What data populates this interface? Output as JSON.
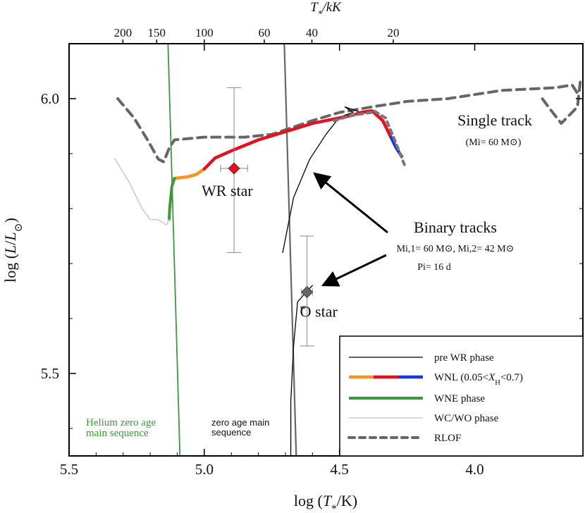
{
  "chart_data": {
    "type": "line",
    "xlabel": "log (T*/K)",
    "ylabel": "log (L/L⊙)",
    "top_xlabel": "T*/kK",
    "xlim": [
      5.5,
      3.6
    ],
    "ylim": [
      5.35,
      6.1
    ],
    "x_ticks": [
      5.5,
      5.0,
      4.5,
      4.0
    ],
    "x_tick_labels": [
      "5.5",
      "5.0",
      "4.5",
      "4.0"
    ],
    "y_ticks": [
      5.5,
      6.0
    ],
    "y_tick_labels": [
      "5.5",
      "6.0"
    ],
    "top_ticks_kK": [
      200,
      150,
      100,
      60,
      40,
      20
    ],
    "top_tick_labels": [
      "200",
      "150",
      "100",
      "60",
      "40",
      "20"
    ],
    "reference_lines": {
      "helium_zams": {
        "label_line1": "Helium zero age",
        "label_line2": "main sequence",
        "color": "#3a9a3a",
        "points": [
          [
            5.14,
            6.2
          ],
          [
            5.09,
            5.35
          ]
        ]
      },
      "zams": {
        "label_line1": "zero age main",
        "label_line2": "sequence",
        "color": "#666666",
        "points": [
          [
            4.71,
            6.2
          ],
          [
            4.66,
            5.35
          ]
        ]
      }
    },
    "series": [
      {
        "key": "single_dashed",
        "style": "rlof",
        "color": "#666666",
        "points": [
          [
            5.32,
            6.0
          ],
          [
            5.26,
            5.965
          ],
          [
            5.21,
            5.925
          ],
          [
            5.17,
            5.89
          ],
          [
            5.15,
            5.885
          ],
          [
            5.13,
            5.91
          ],
          [
            5.11,
            5.925
          ],
          [
            5.0,
            5.93
          ],
          [
            4.85,
            5.93
          ],
          [
            4.75,
            5.935
          ],
          [
            4.6,
            5.96
          ],
          [
            4.5,
            5.975
          ],
          [
            4.38,
            5.985
          ],
          [
            4.25,
            5.995
          ],
          [
            4.1,
            6.0
          ],
          [
            3.9,
            6.015
          ],
          [
            3.7,
            6.02
          ],
          [
            3.64,
            6.025
          ],
          [
            3.62,
            6.01
          ]
        ]
      },
      {
        "key": "single_dashed_tail",
        "style": "rlof",
        "color": "#666666",
        "points": [
          [
            3.61,
            6.03
          ],
          [
            3.62,
            5.985
          ],
          [
            3.68,
            5.955
          ],
          [
            3.72,
            5.98
          ],
          [
            3.75,
            6.0
          ]
        ]
      },
      {
        "key": "binary_pre_wr",
        "style": "pre_wr",
        "color": "#000000",
        "points": [
          [
            4.68,
            5.35
          ],
          [
            4.68,
            5.45
          ],
          [
            4.67,
            5.55
          ],
          [
            4.655,
            5.63
          ],
          [
            4.62,
            5.65
          ],
          [
            4.6,
            5.66
          ]
        ]
      },
      {
        "key": "binary_pre_wr_2",
        "style": "pre_wr",
        "color": "#000000",
        "points": [
          [
            4.71,
            5.72
          ],
          [
            4.67,
            5.82
          ],
          [
            4.61,
            5.89
          ],
          [
            4.55,
            5.935
          ],
          [
            4.51,
            5.96
          ],
          [
            4.48,
            5.97
          ],
          [
            4.45,
            5.975
          ],
          [
            4.48,
            5.985
          ],
          [
            4.42,
            5.975
          ]
        ]
      },
      {
        "key": "binary_wnl_orange",
        "style": "wnl",
        "color": "#f7941d",
        "points": [
          [
            5.11,
            5.855
          ],
          [
            5.06,
            5.858
          ],
          [
            5.03,
            5.862
          ],
          [
            5.0,
            5.872
          ]
        ]
      },
      {
        "key": "binary_wnl_red",
        "style": "wnl",
        "color": "#e8101e",
        "points": [
          [
            5.0,
            5.872
          ],
          [
            4.96,
            5.892
          ],
          [
            4.9,
            5.905
          ],
          [
            4.8,
            5.925
          ],
          [
            4.7,
            5.94
          ],
          [
            4.6,
            5.955
          ],
          [
            4.5,
            5.965
          ],
          [
            4.45,
            5.97
          ],
          [
            4.42,
            5.975
          ],
          [
            4.38,
            5.978
          ],
          [
            4.34,
            5.96
          ],
          [
            4.31,
            5.93
          ]
        ]
      },
      {
        "key": "binary_wnl_blue",
        "style": "wnl",
        "color": "#1a36e8",
        "points": [
          [
            4.31,
            5.93
          ],
          [
            4.29,
            5.91
          ],
          [
            4.27,
            5.895
          ]
        ]
      },
      {
        "key": "binary_wne",
        "style": "wne",
        "color": "#3a9a3a",
        "points": [
          [
            5.13,
            5.78
          ],
          [
            5.128,
            5.8
          ],
          [
            5.12,
            5.84
          ],
          [
            5.11,
            5.855
          ]
        ]
      },
      {
        "key": "binary_wc_wo",
        "style": "wcwo",
        "color": "#cccccc",
        "points": [
          [
            5.33,
            5.89
          ],
          [
            5.28,
            5.85
          ],
          [
            5.23,
            5.8
          ],
          [
            5.2,
            5.78
          ],
          [
            5.17,
            5.78
          ],
          [
            5.14,
            5.77
          ],
          [
            5.13,
            5.78
          ]
        ]
      },
      {
        "key": "binary_rlof_1",
        "style": "rlof",
        "color": "#777777",
        "points": [
          [
            4.52,
            5.96
          ],
          [
            4.45,
            5.97
          ],
          [
            4.38,
            5.975
          ]
        ]
      },
      {
        "key": "binary_rlof_2",
        "style": "rlof",
        "color": "#777777",
        "points": [
          [
            4.37,
            5.977
          ],
          [
            4.33,
            5.965
          ],
          [
            4.3,
            5.93
          ],
          [
            4.28,
            5.905
          ],
          [
            4.26,
            5.88
          ]
        ]
      },
      {
        "key": "binary_rlof_3",
        "style": "rlof",
        "color": "#777777",
        "points": [
          [
            4.64,
            5.62
          ],
          [
            4.63,
            5.62
          ]
        ]
      }
    ],
    "stars": [
      {
        "name": "WR star",
        "x": 4.89,
        "y": 5.873,
        "color": "#e8101e",
        "x_err": 0.05,
        "y_err": [
          5.72,
          6.02
        ]
      },
      {
        "name": "O star",
        "x": 4.62,
        "y": 5.648,
        "color": "#666666",
        "x_err": 0.02,
        "y_err": [
          5.55,
          5.75
        ]
      }
    ],
    "annotations": {
      "single_title": "Single track",
      "single_sub": "(Mi= 60 M⊙)",
      "binary_title": "Binary tracks",
      "binary_sub1": "Mi,1= 60 M⊙, Mi,2= 42 M⊙",
      "binary_sub2": "Pi= 16 d"
    },
    "legend": {
      "placement": "bottom-right",
      "entries": [
        {
          "label": "pre WR phase",
          "style": "pre_wr"
        },
        {
          "label": "WNL  (0.05<XH<0.7)",
          "style": "wnl"
        },
        {
          "label": "WNE phase",
          "style": "wne"
        },
        {
          "label": "WC/WO phase",
          "style": "wcwo"
        },
        {
          "label": "RLOF",
          "style": "rlof"
        }
      ]
    }
  }
}
